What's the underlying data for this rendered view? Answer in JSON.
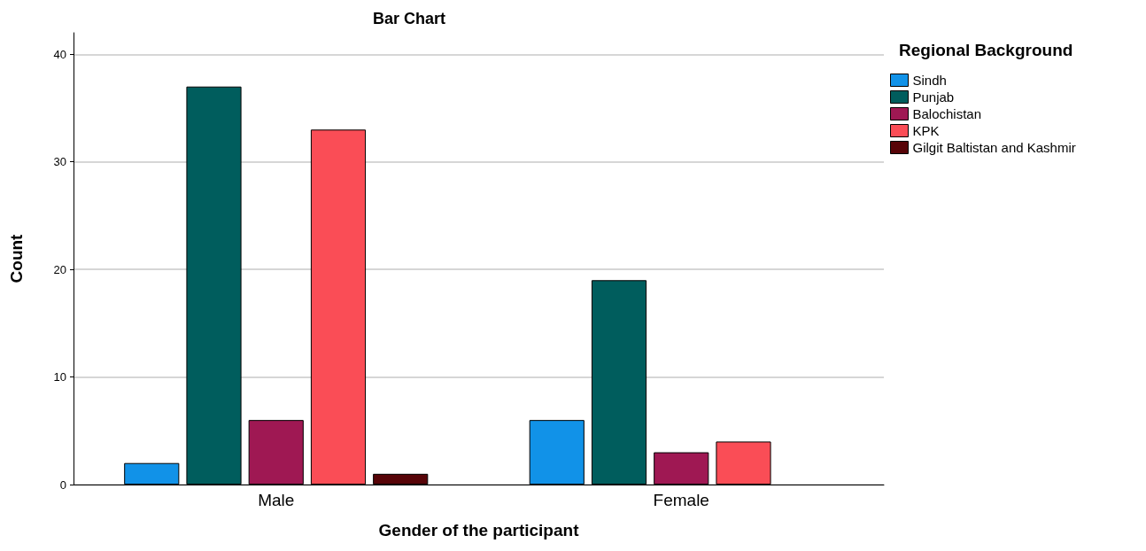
{
  "chart_data": {
    "type": "bar",
    "title": "Bar Chart",
    "xlabel": "Gender of the participant",
    "ylabel": "Count",
    "legend_title": "Regional Background",
    "categories": [
      "Male",
      "Female"
    ],
    "series": [
      {
        "name": "Sindh",
        "color": "#1192e8",
        "values": [
          2,
          6
        ]
      },
      {
        "name": "Punjab",
        "color": "#005d5d",
        "values": [
          37,
          19
        ]
      },
      {
        "name": "Balochistan",
        "color": "#9f1853",
        "values": [
          6,
          3
        ]
      },
      {
        "name": "KPK",
        "color": "#fa4d56",
        "values": [
          33,
          4
        ]
      },
      {
        "name": "Gilgit Baltistan and Kashmir",
        "color": "#570408",
        "values": [
          1,
          null
        ]
      }
    ],
    "ylim": [
      0,
      42
    ],
    "yticks": [
      0,
      10,
      20,
      30,
      40
    ],
    "grid": "y",
    "legend": "top right"
  }
}
